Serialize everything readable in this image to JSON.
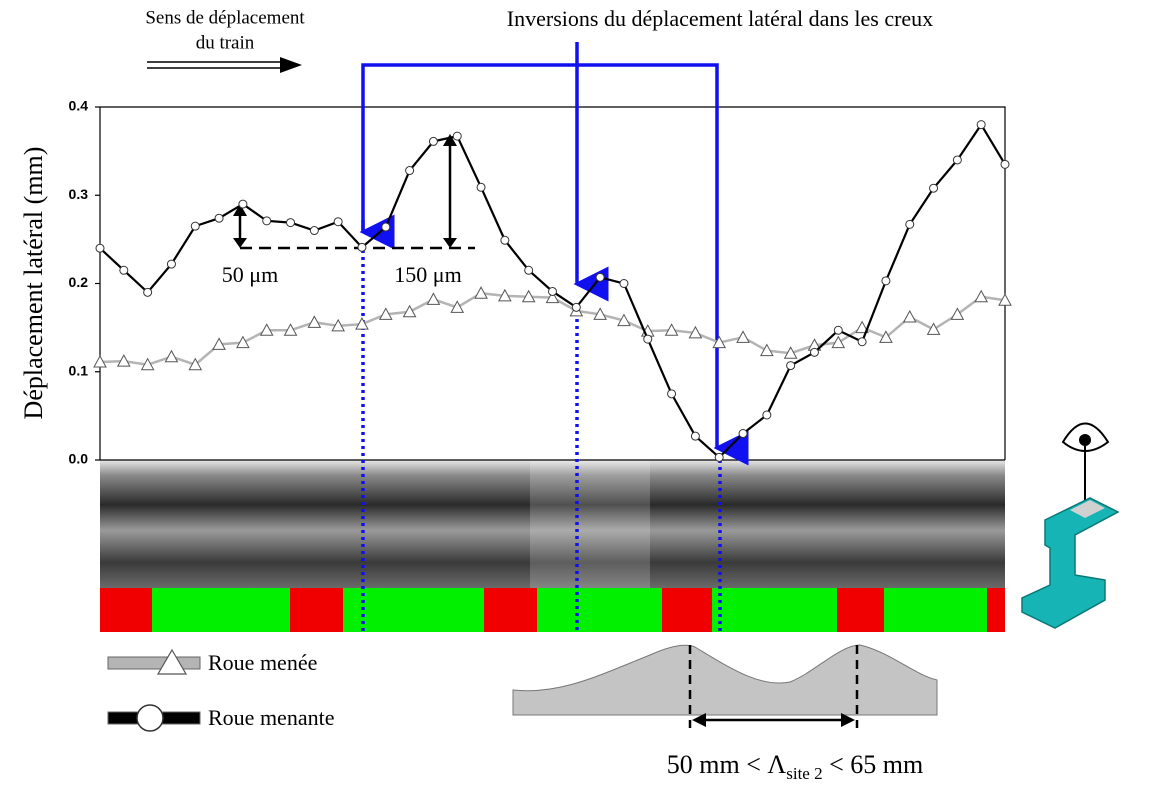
{
  "chart_data": {
    "type": "line",
    "y_label": "Déplacement latéral (mm)",
    "x": [
      0,
      1,
      2,
      3,
      4,
      5,
      6,
      7,
      8,
      9,
      10,
      11,
      12,
      13,
      14,
      15,
      16,
      17,
      18,
      19,
      20,
      21,
      22,
      23,
      24,
      25,
      26,
      27,
      28,
      29,
      30,
      31,
      32,
      33,
      34,
      35,
      36,
      37,
      38
    ],
    "xlim": [
      0,
      38
    ],
    "ylim": [
      0,
      0.4
    ],
    "yticks": [
      {
        "value": 0,
        "label": "0.0"
      },
      0.1,
      0.2,
      0.3,
      0.4
    ],
    "series": [
      {
        "name": "Roue menée",
        "color": "#b4b4b4",
        "marker": "triangle",
        "values": [
          0.111,
          0.112,
          0.108,
          0.117,
          0.108,
          0.131,
          0.133,
          0.147,
          0.147,
          0.156,
          0.152,
          0.154,
          0.165,
          0.168,
          0.182,
          0.173,
          0.189,
          0.186,
          0.185,
          0.184,
          0.169,
          0.165,
          0.158,
          0.146,
          0.147,
          0.144,
          0.133,
          0.139,
          0.124,
          0.121,
          0.13,
          0.133,
          0.15,
          0.139,
          0.162,
          0.148,
          0.165,
          0.185,
          0.181
        ]
      },
      {
        "name": "Roue menante",
        "color": "#000000",
        "marker": "circle",
        "values": [
          0.24,
          0.215,
          0.19,
          0.222,
          0.265,
          0.274,
          0.29,
          0.271,
          0.269,
          0.26,
          0.27,
          0.241,
          0.264,
          0.328,
          0.361,
          0.367,
          0.309,
          0.249,
          0.215,
          0.191,
          0.173,
          0.207,
          0.2,
          0.137,
          0.075,
          0.027,
          0.003,
          0.03,
          0.051,
          0.107,
          0.122,
          0.147,
          0.134,
          0.203,
          0.267,
          0.308,
          0.34,
          0.38,
          0.335
        ]
      }
    ],
    "annotations": {
      "direction": [
        "Sens de déplacement",
        "du train"
      ],
      "inversions": "Inversions du déplacement latéral dans les creux",
      "amp_small": "50 μm",
      "amp_large": "150 μm",
      "wavelength": [
        "50 mm < Λ",
        "site 2",
        " < 65 mm"
      ]
    }
  }
}
